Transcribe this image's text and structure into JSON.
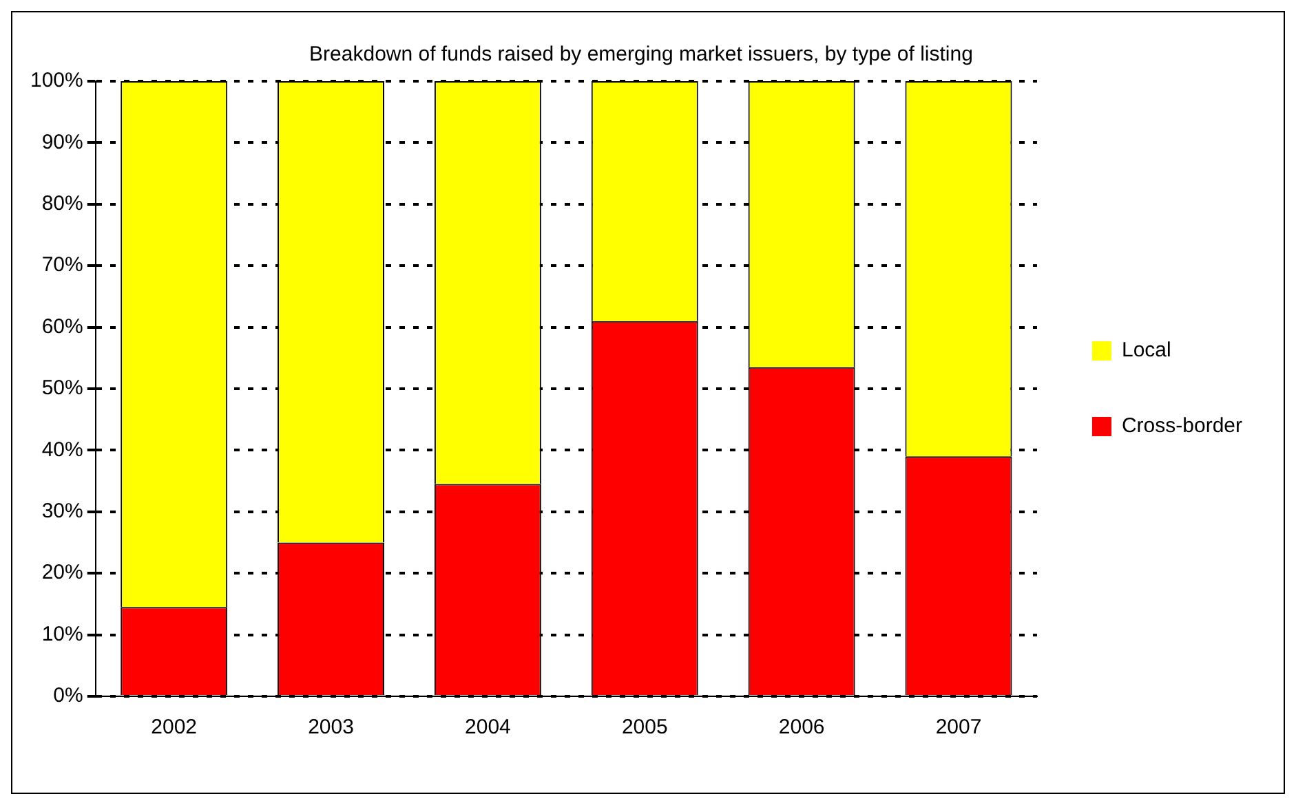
{
  "chart_data": {
    "type": "bar",
    "title": "Breakdown of funds raised by emerging market issuers, by type of listing",
    "categories": [
      "2002",
      "2003",
      "2004",
      "2005",
      "2006",
      "2007"
    ],
    "series": [
      {
        "name": "Cross-border",
        "color": "#ff0000",
        "values": [
          14.5,
          25,
          34.5,
          61,
          53.5,
          39
        ]
      },
      {
        "name": "Local",
        "color": "#ffff00",
        "values": [
          85.5,
          75,
          65.5,
          39,
          46.5,
          61
        ]
      }
    ],
    "stacked": true,
    "ylim": [
      0,
      100
    ],
    "yticks": [
      {
        "value": 0,
        "label": "0%"
      },
      {
        "value": 10,
        "label": "10%"
      },
      {
        "value": 20,
        "label": "20%"
      },
      {
        "value": 30,
        "label": "30%"
      },
      {
        "value": 40,
        "label": "40%"
      },
      {
        "value": 50,
        "label": "50%"
      },
      {
        "value": 60,
        "label": "60%"
      },
      {
        "value": 70,
        "label": "70%"
      },
      {
        "value": 80,
        "label": "80%"
      },
      {
        "value": 90,
        "label": "90%"
      },
      {
        "value": 100,
        "label": "100%"
      }
    ],
    "grid": "y",
    "legend": "right"
  }
}
